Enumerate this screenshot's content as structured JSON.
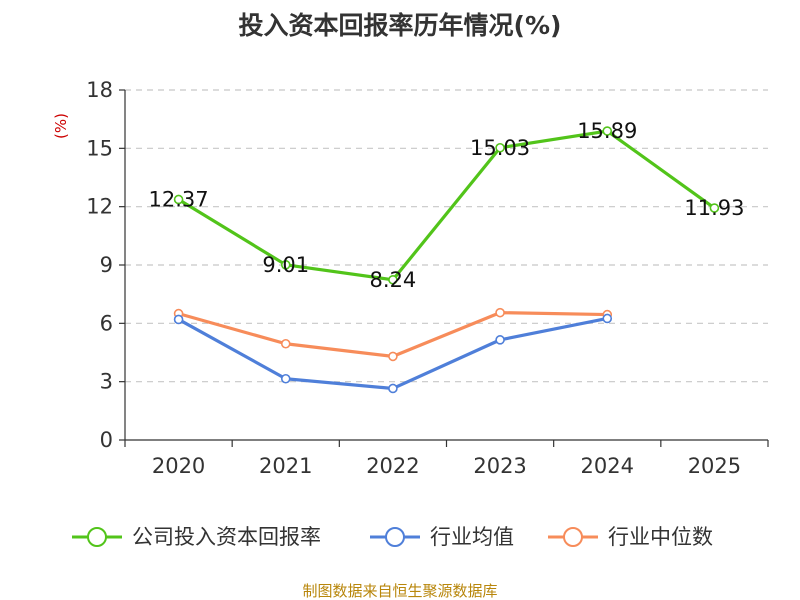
{
  "chart_data": {
    "type": "line",
    "title": "投入资本回报率历年情况(%)",
    "ylabel": "(%)",
    "xlabel": "",
    "categories": [
      "2020",
      "2021",
      "2022",
      "2023",
      "2024",
      "2025"
    ],
    "ylim": [
      0,
      18
    ],
    "yticks": [
      0,
      3,
      6,
      9,
      12,
      15,
      18
    ],
    "grid": true,
    "legend_position": "bottom",
    "series": [
      {
        "name": "公司投入资本回报率",
        "color": "#52c41a",
        "values": [
          12.37,
          9.01,
          8.24,
          15.03,
          15.89,
          11.93
        ],
        "labels": [
          "12.37",
          "9.01",
          "8.24",
          "15.03",
          "15.89",
          "11.93"
        ]
      },
      {
        "name": "行业均值",
        "color": "#4f7fd9",
        "values": [
          6.2,
          3.15,
          2.65,
          5.15,
          6.25,
          null
        ]
      },
      {
        "name": "行业中位数",
        "color": "#f78c5a",
        "values": [
          6.5,
          4.95,
          4.3,
          6.55,
          6.45,
          null
        ]
      }
    ],
    "source": "制图数据来自恒生聚源数据库"
  }
}
